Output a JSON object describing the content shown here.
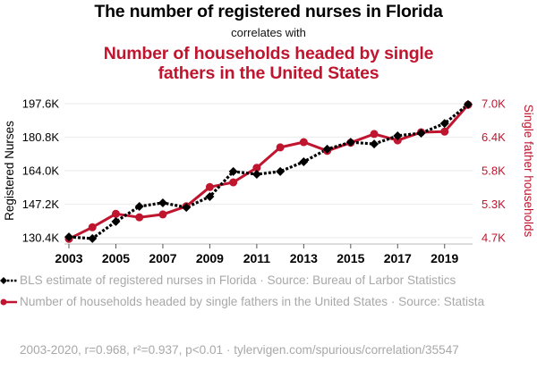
{
  "header": {
    "title": "The number of registered nurses in Florida",
    "subtitle": "correlates with",
    "title2": "Number of households headed by single fathers in the United States"
  },
  "legend": {
    "items": [
      {
        "label": "BLS estimate of registered nurses in Florida · Source: Bureau of Larbor Statistics",
        "color": "#000000",
        "marker": "diamond",
        "line": "dotted"
      },
      {
        "label": "Number of households headed by single fathers in the United States · Source: Statista",
        "color": "#c0152f",
        "marker": "circle",
        "line": "solid"
      }
    ]
  },
  "footer": {
    "text": "2003-2020, r=0.968, r²=0.937, p<0.01 · tylervigen.com/spurious/correlation/35547"
  },
  "chart_data": {
    "type": "line",
    "title": "The number of registered nurses in Florida correlates with Number of households headed by single fathers in the United States",
    "x": [
      2003,
      2004,
      2005,
      2006,
      2007,
      2008,
      2009,
      2010,
      2011,
      2012,
      2013,
      2014,
      2015,
      2016,
      2017,
      2018,
      2019,
      2020
    ],
    "xticks": [
      "2003",
      "2005",
      "2007",
      "2009",
      "2011",
      "2013",
      "2015",
      "2017",
      "2019"
    ],
    "xlim": [
      2003,
      2020
    ],
    "grid": true,
    "series": [
      {
        "name": "BLS estimate of registered nurses in Florida",
        "axis": "left",
        "color": "#000000",
        "marker": "diamond",
        "values": [
          130.8,
          130.0,
          138.5,
          146.1,
          147.9,
          145.6,
          151.0,
          163.6,
          162.2,
          163.6,
          168.5,
          174.8,
          178.3,
          177.4,
          181.5,
          182.8,
          187.7,
          197.2
        ]
      },
      {
        "name": "Number of households headed by single fathers in the United States",
        "axis": "right",
        "color": "#c0152f",
        "marker": "circle",
        "values": [
          4.68,
          4.88,
          5.11,
          5.05,
          5.1,
          5.24,
          5.57,
          5.65,
          5.9,
          6.25,
          6.34,
          6.19,
          6.33,
          6.48,
          6.37,
          6.51,
          6.52,
          6.98
        ]
      }
    ],
    "yaxis_left": {
      "label": "Registered Nurses",
      "ticks": [
        130.4,
        147.2,
        164.0,
        180.8,
        197.6
      ],
      "tick_labels": [
        "130.4K",
        "147.2K",
        "164.0K",
        "180.8K",
        "197.6K"
      ],
      "ylim": [
        130.4,
        197.6
      ]
    },
    "yaxis_right": {
      "label": "Single father households",
      "ticks": [
        4.7,
        5.275,
        5.85,
        6.425,
        7.0
      ],
      "tick_labels": [
        "4.7K",
        "5.3K",
        "5.8K",
        "6.4K",
        "7.0K"
      ],
      "ylim": [
        4.7,
        7.0
      ],
      "color": "#c0152f"
    }
  }
}
